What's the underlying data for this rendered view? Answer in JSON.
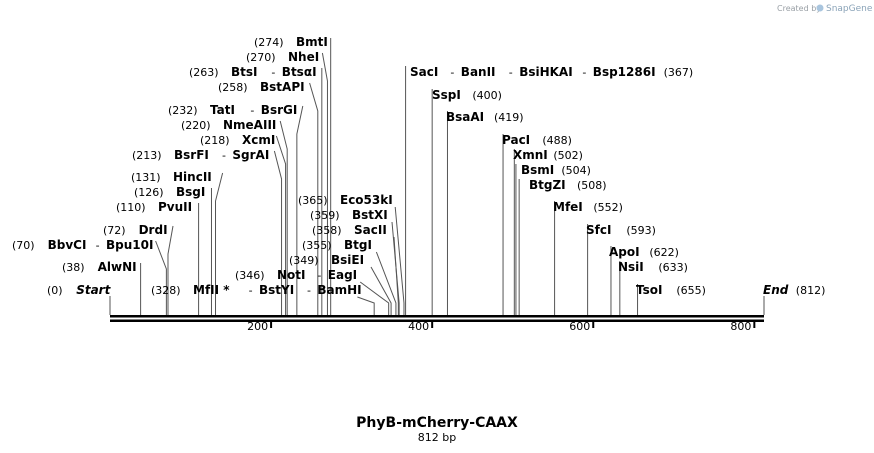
{
  "credit": {
    "prefix": "Created by",
    "brand": "SnapGene"
  },
  "map": {
    "name": "PhyB-mCherry-CAAX",
    "length_label": "812 bp",
    "length": 812,
    "ticks": [
      {
        "value": 200,
        "label": "200"
      },
      {
        "value": 400,
        "label": "400"
      },
      {
        "value": 600,
        "label": "600"
      },
      {
        "value": 800,
        "label": "800"
      }
    ],
    "sites": [
      {
        "id": "start",
        "pos": 0,
        "pos_label": "(0)",
        "names": [
          "Start"
        ],
        "italic": true
      },
      {
        "id": "alwni",
        "pos": 38,
        "pos_label": "(38)",
        "names": [
          "AlwNI"
        ]
      },
      {
        "id": "bbvci",
        "pos": 70,
        "pos_label": "(70)",
        "names": [
          "BbvCI",
          "Bpu10I"
        ]
      },
      {
        "id": "drdi",
        "pos": 72,
        "pos_label": "(72)",
        "names": [
          "DrdI"
        ]
      },
      {
        "id": "pvuii",
        "pos": 110,
        "pos_label": "(110)",
        "names": [
          "PvuII"
        ]
      },
      {
        "id": "bsgi",
        "pos": 126,
        "pos_label": "(126)",
        "names": [
          "BsgI"
        ]
      },
      {
        "id": "hincii",
        "pos": 131,
        "pos_label": "(131)",
        "names": [
          "HincII"
        ]
      },
      {
        "id": "bsrfi",
        "pos": 213,
        "pos_label": "(213)",
        "names": [
          "BsrFI",
          "SgrAI"
        ]
      },
      {
        "id": "xcmi",
        "pos": 218,
        "pos_label": "(218)",
        "names": [
          "XcmI"
        ]
      },
      {
        "id": "nmeaiii",
        "pos": 220,
        "pos_label": "(220)",
        "names": [
          "NmeAIII"
        ]
      },
      {
        "id": "tati",
        "pos": 232,
        "pos_label": "(232)",
        "names": [
          "TatI",
          "BsrGI"
        ]
      },
      {
        "id": "bstapi",
        "pos": 258,
        "pos_label": "(258)",
        "names": [
          "BstAPI"
        ]
      },
      {
        "id": "btsi",
        "pos": 263,
        "pos_label": "(263)",
        "names": [
          "BtsI",
          "BtsαI"
        ]
      },
      {
        "id": "nhei",
        "pos": 270,
        "pos_label": "(270)",
        "names": [
          "NheI"
        ]
      },
      {
        "id": "bmti",
        "pos": 274,
        "pos_label": "(274)",
        "names": [
          "BmtI"
        ]
      },
      {
        "id": "mfli",
        "pos": 328,
        "pos_label": "(328)",
        "names": [
          "MfII *",
          "BstYI",
          "BamHI"
        ]
      },
      {
        "id": "noti",
        "pos": 346,
        "pos_label": "(346)",
        "names": [
          "NotI",
          "EagI"
        ]
      },
      {
        "id": "bsiei",
        "pos": 349,
        "pos_label": "(349)",
        "names": [
          "BsiEI"
        ]
      },
      {
        "id": "btgi",
        "pos": 355,
        "pos_label": "(355)",
        "names": [
          "BtgI"
        ]
      },
      {
        "id": "sacii",
        "pos": 358,
        "pos_label": "(358)",
        "names": [
          "SacII"
        ]
      },
      {
        "id": "bstxi",
        "pos": 359,
        "pos_label": "(359)",
        "names": [
          "BstXI"
        ]
      },
      {
        "id": "eco53ki",
        "pos": 365,
        "pos_label": "(365)",
        "names": [
          "Eco53kI"
        ]
      },
      {
        "id": "saci",
        "pos": 367,
        "pos_label": "(367)",
        "names": [
          "SacI",
          "BanII",
          "BsiHKAI",
          "Bsp1286I"
        ]
      },
      {
        "id": "sspi",
        "pos": 400,
        "pos_label": "(400)",
        "names": [
          "SspI"
        ]
      },
      {
        "id": "bsaai",
        "pos": 419,
        "pos_label": "(419)",
        "names": [
          "BsaAI"
        ]
      },
      {
        "id": "paci",
        "pos": 488,
        "pos_label": "(488)",
        "names": [
          "PacI"
        ]
      },
      {
        "id": "xmni",
        "pos": 502,
        "pos_label": "(502)",
        "names": [
          "XmnI"
        ]
      },
      {
        "id": "bsmi",
        "pos": 504,
        "pos_label": "(504)",
        "names": [
          "BsmI"
        ]
      },
      {
        "id": "btgzi",
        "pos": 508,
        "pos_label": "(508)",
        "names": [
          "BtgZI"
        ]
      },
      {
        "id": "mfei",
        "pos": 552,
        "pos_label": "(552)",
        "names": [
          "MfeI"
        ]
      },
      {
        "id": "sfci",
        "pos": 593,
        "pos_label": "(593)",
        "names": [
          "SfcI"
        ]
      },
      {
        "id": "apoi",
        "pos": 622,
        "pos_label": "(622)",
        "names": [
          "ApoI"
        ]
      },
      {
        "id": "nsii",
        "pos": 633,
        "pos_label": "(633)",
        "names": [
          "NsiI"
        ]
      },
      {
        "id": "tsoi",
        "pos": 655,
        "pos_label": "(655)",
        "names": [
          "TsoI"
        ]
      },
      {
        "id": "end",
        "pos": 812,
        "pos_label": "(812)",
        "names": [
          "End"
        ],
        "italic": true
      }
    ]
  }
}
